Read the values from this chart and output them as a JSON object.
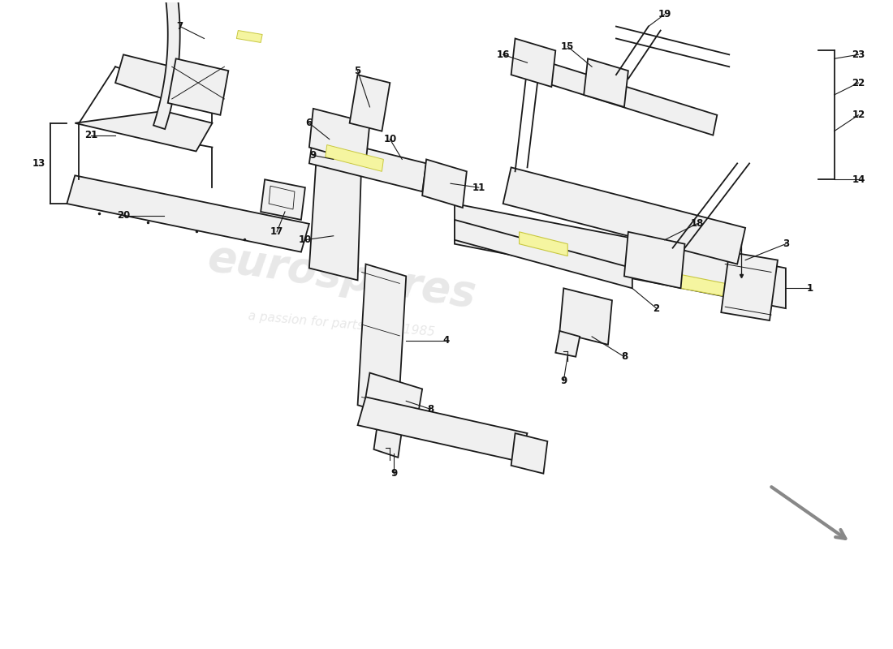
{
  "bg_color": "#ffffff",
  "line_color": "#1a1a1a",
  "fill_color": "#f0f0f0",
  "yellow_color": "#f5f5a0",
  "watermark1": "eurospares",
  "watermark2": "a passion for parts since 1985",
  "lw": 1.3
}
